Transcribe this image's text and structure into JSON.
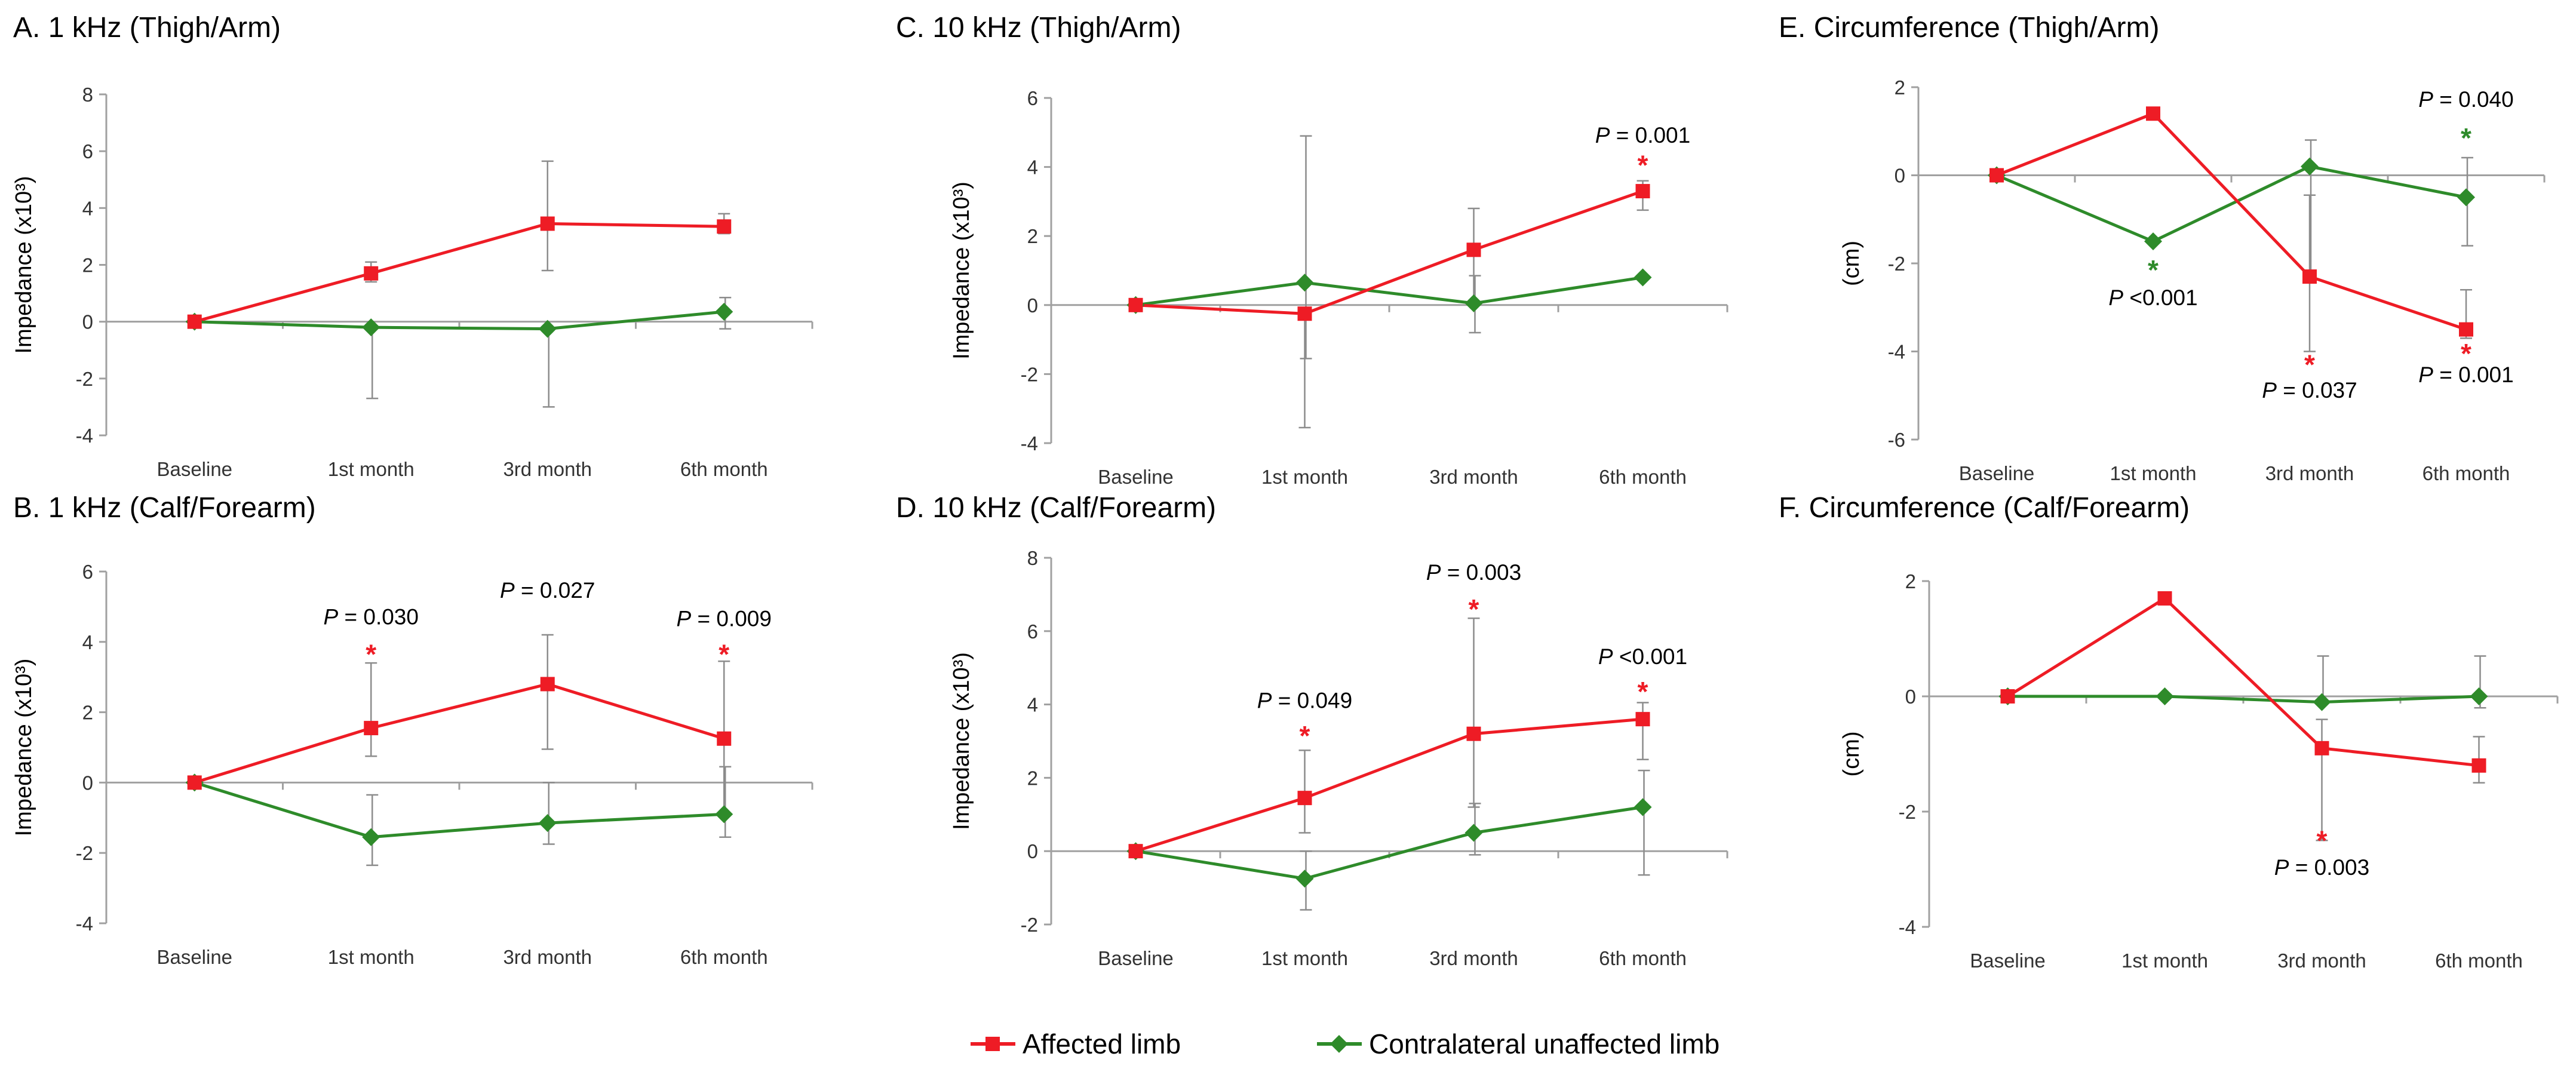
{
  "colors": {
    "affected": "#ee1c25",
    "contralateral": "#2e8b2a",
    "errorbar": "#8c8c8c",
    "axis": "#a0a0a0"
  },
  "legend": {
    "affected": "Affected limb",
    "contralateral": "Contralateral unaffected limb"
  },
  "chart_data": [
    {
      "id": "A",
      "type": "line",
      "title": "A. 1 kHz (Thigh/Arm)",
      "ylabel": "Impedance (x10³)",
      "ylim": [
        -4,
        8
      ],
      "yticks": [
        -4,
        -2,
        0,
        2,
        4,
        6,
        8
      ],
      "categories": [
        "Baseline",
        "1st month",
        "3rd month",
        "6th month"
      ],
      "series": [
        {
          "name": "Affected limb",
          "values": [
            0,
            1.7,
            3.45,
            3.35
          ],
          "err_low": [
            0,
            0.3,
            1.65,
            0.25
          ],
          "err_high": [
            0,
            0.4,
            2.2,
            0.45
          ]
        },
        {
          "name": "Contralateral unaffected limb",
          "values": [
            0,
            -0.2,
            -0.25,
            0.35
          ],
          "err_low": [
            0,
            2.5,
            2.75,
            0.6
          ],
          "err_high": [
            0,
            0,
            0,
            0.5
          ]
        }
      ],
      "annotations": []
    },
    {
      "id": "B",
      "type": "line",
      "title": "B. 1 kHz (Calf/Forearm)",
      "ylabel": "Impedance (x10³)",
      "ylim": [
        -4,
        6
      ],
      "yticks": [
        -4,
        -2,
        0,
        2,
        4,
        6
      ],
      "categories": [
        "Baseline",
        "1st month",
        "3rd month",
        "6th month"
      ],
      "series": [
        {
          "name": "Affected limb",
          "values": [
            0,
            1.55,
            2.8,
            1.25
          ],
          "err_low": [
            0,
            0.8,
            1.85,
            2.2
          ],
          "err_high": [
            0,
            1.85,
            1.4,
            2.2
          ]
        },
        {
          "name": "Contralateral unaffected limb",
          "values": [
            0,
            -1.55,
            -1.15,
            -0.9
          ],
          "err_low": [
            0,
            0.8,
            0.6,
            0.65
          ],
          "err_high": [
            0,
            1.2,
            1.15,
            1.35
          ]
        }
      ],
      "annotations": [
        {
          "p": "P",
          "text": " = 0.030",
          "cat": 1,
          "y": 4.5,
          "star": true,
          "star_y": 3.65,
          "star_series": "affected"
        },
        {
          "p": "P",
          "text": " = 0.027",
          "cat": 2,
          "y": 5.25,
          "star": false
        },
        {
          "p": "P",
          "text": " = 0.009",
          "cat": 3,
          "y": 4.45,
          "star": true,
          "star_y": 3.65,
          "star_series": "affected"
        }
      ]
    },
    {
      "id": "C",
      "type": "line",
      "title": "C. 10 kHz (Thigh/Arm)",
      "ylabel": "Impedance (x10³)",
      "ylim": [
        -4,
        6
      ],
      "yticks": [
        -4,
        -2,
        0,
        2,
        4,
        6
      ],
      "categories": [
        "Baseline",
        "1st month",
        "3rd month",
        "6th month"
      ],
      "series": [
        {
          "name": "Affected limb",
          "values": [
            0,
            -0.25,
            1.6,
            3.3
          ],
          "err_low": [
            0,
            3.3,
            1.6,
            0.55
          ],
          "err_high": [
            0,
            0,
            1.2,
            0.3
          ]
        },
        {
          "name": "Contralateral unaffected limb",
          "values": [
            0,
            0.65,
            0.05,
            0.8
          ],
          "err_low": [
            0,
            2.2,
            0.85,
            0
          ],
          "err_high": [
            0,
            4.25,
            0.8,
            0
          ]
        }
      ],
      "annotations": [
        {
          "p": "P",
          "text": " = 0.001",
          "cat": 3,
          "y": 4.7,
          "star": true,
          "star_y": 4.05,
          "star_series": "affected"
        }
      ]
    },
    {
      "id": "D",
      "type": "line",
      "title": "D. 10 kHz (Calf/Forearm)",
      "ylabel": "Impedance (x10³)",
      "ylim": [
        -2,
        8
      ],
      "yticks": [
        -2,
        0,
        2,
        4,
        6,
        8
      ],
      "categories": [
        "Baseline",
        "1st month",
        "3rd month",
        "6th month"
      ],
      "series": [
        {
          "name": "Affected limb",
          "values": [
            0,
            1.45,
            3.2,
            3.6
          ],
          "err_low": [
            0,
            0.95,
            2.0,
            1.1
          ],
          "err_high": [
            0,
            1.3,
            3.15,
            0.45
          ]
        },
        {
          "name": "Contralateral unaffected limb",
          "values": [
            0,
            -0.75,
            0.5,
            1.2
          ],
          "err_low": [
            0,
            0.85,
            0.6,
            1.85
          ],
          "err_high": [
            0,
            0.75,
            0.8,
            1.0
          ]
        }
      ],
      "annotations": [
        {
          "p": "P",
          "text": " = 0.049",
          "cat": 1,
          "y": 3.9,
          "star": true,
          "star_y": 3.15,
          "star_series": "affected"
        },
        {
          "p": "P",
          "text": " = 0.003",
          "cat": 2,
          "y": 7.4,
          "star": true,
          "star_y": 6.6,
          "star_series": "affected"
        },
        {
          "p": "P",
          "text": " <0.001",
          "cat": 3,
          "y": 5.1,
          "star": true,
          "star_y": 4.35,
          "star_series": "affected"
        }
      ]
    },
    {
      "id": "E",
      "type": "line",
      "title": "E. Circumference (Thigh/Arm)",
      "ylabel": "(cm)",
      "ylim": [
        -6,
        2
      ],
      "yticks": [
        -6,
        -4,
        -2,
        0,
        2
      ],
      "categories": [
        "Baseline",
        "1st month",
        "3rd month",
        "6th month"
      ],
      "series": [
        {
          "name": "Affected limb",
          "values": [
            0,
            1.4,
            -2.3,
            -3.5
          ],
          "err_low": [
            0,
            0,
            1.7,
            0.2
          ],
          "err_high": [
            0,
            0,
            1.85,
            0.9
          ]
        },
        {
          "name": "Contralateral unaffected limb",
          "values": [
            0,
            -1.5,
            0.2,
            -0.5
          ],
          "err_low": [
            0,
            0,
            2.5,
            1.1
          ],
          "err_high": [
            0,
            0,
            0.6,
            0.9
          ]
        }
      ],
      "annotations": [
        {
          "p": "P",
          "text": " <0.001",
          "cat": 1,
          "y": -2.95,
          "star": true,
          "star_y": -2.15,
          "star_series": "contralateral"
        },
        {
          "p": "P",
          "text": " = 0.037",
          "cat": 2,
          "y": -5.05,
          "star": true,
          "star_y": -4.3,
          "star_series": "affected"
        },
        {
          "p": "P",
          "text": " = 0.040",
          "cat": 3,
          "y": 1.55,
          "star": true,
          "star_y": 0.85,
          "star_series": "contralateral"
        },
        {
          "p": "P",
          "text": " = 0.001",
          "cat": 3,
          "y": -4.7,
          "star": true,
          "star_y": -4.05,
          "star_series": "affected"
        }
      ]
    },
    {
      "id": "F",
      "type": "line",
      "title": "F. Circumference (Calf/Forearm)",
      "ylabel": "(cm)",
      "ylim": [
        -4,
        2
      ],
      "yticks": [
        -4,
        -2,
        0,
        2
      ],
      "categories": [
        "Baseline",
        "1st month",
        "3rd month",
        "6th month"
      ],
      "series": [
        {
          "name": "Affected limb",
          "values": [
            0,
            1.7,
            -0.9,
            -1.2
          ],
          "err_low": [
            0,
            0,
            1.6,
            0.3
          ],
          "err_high": [
            0,
            0,
            0.5,
            0.5
          ]
        },
        {
          "name": "Contralateral unaffected limb",
          "values": [
            0,
            0,
            -0.1,
            0
          ],
          "err_low": [
            0,
            0,
            0,
            0.2
          ],
          "err_high": [
            0,
            0,
            0.8,
            0.7
          ]
        }
      ],
      "annotations": [
        {
          "p": "P",
          "text": " = 0.003",
          "cat": 2,
          "y": -3.1,
          "star": true,
          "star_y": -2.5,
          "star_series": "affected"
        }
      ]
    }
  ]
}
